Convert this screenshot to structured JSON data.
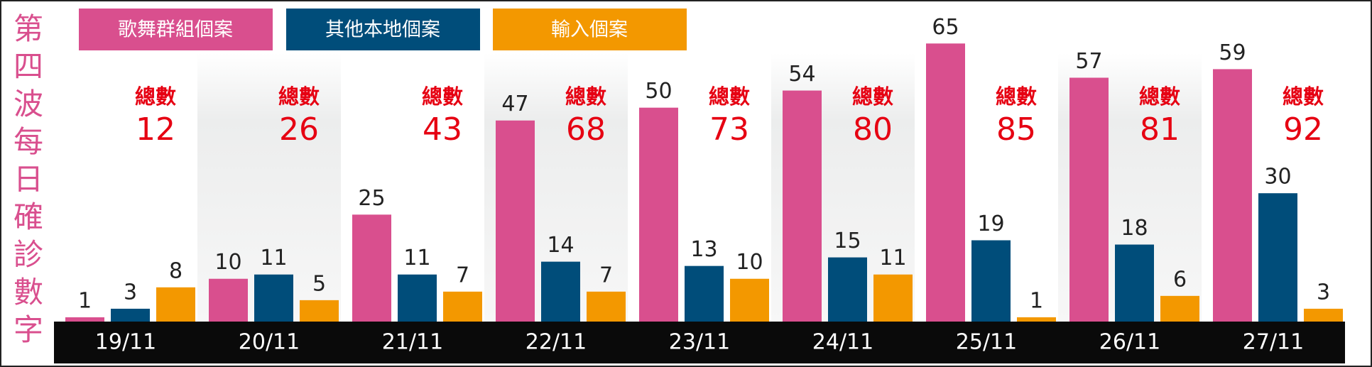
{
  "chart_data": {
    "type": "bar",
    "title": "第四波每日確診數字",
    "categories": [
      "19/11",
      "20/11",
      "21/11",
      "22/11",
      "23/11",
      "24/11",
      "25/11",
      "26/11",
      "27/11"
    ],
    "series": [
      {
        "name": "歌舞群組個案",
        "color": "#d94f8e",
        "values": [
          1,
          10,
          25,
          47,
          50,
          54,
          65,
          57,
          59
        ]
      },
      {
        "name": "其他本地個案",
        "color": "#004d7a",
        "values": [
          3,
          11,
          11,
          14,
          13,
          15,
          19,
          18,
          30
        ]
      },
      {
        "name": "輸入個案",
        "color": "#f39800",
        "values": [
          8,
          5,
          7,
          7,
          10,
          11,
          1,
          6,
          3
        ]
      }
    ],
    "total_label": "總數",
    "totals": [
      12,
      26,
      43,
      68,
      73,
      80,
      85,
      81,
      92
    ],
    "total_color": "#e60012",
    "ylim": [
      0,
      75
    ]
  }
}
